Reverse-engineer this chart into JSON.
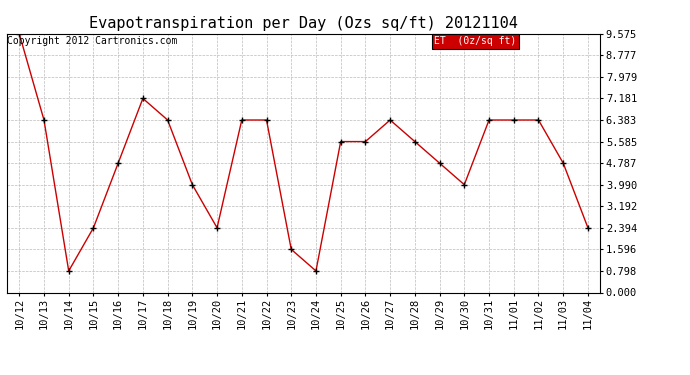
{
  "title": "Evapotranspiration per Day (Ozs sq/ft) 20121104",
  "copyright": "Copyright 2012 Cartronics.com",
  "legend_label": "ET  (0z/sq ft)",
  "x_labels": [
    "10/12",
    "10/13",
    "10/14",
    "10/15",
    "10/16",
    "10/17",
    "10/18",
    "10/19",
    "10/20",
    "10/21",
    "10/22",
    "10/23",
    "10/24",
    "10/25",
    "10/26",
    "10/27",
    "10/28",
    "10/29",
    "10/30",
    "10/31",
    "11/01",
    "11/02",
    "11/03",
    "11/04"
  ],
  "y_values": [
    9.575,
    6.383,
    0.798,
    2.394,
    4.787,
    7.181,
    6.383,
    3.99,
    2.394,
    6.383,
    6.383,
    1.596,
    0.798,
    5.585,
    5.585,
    6.383,
    5.585,
    4.787,
    3.99,
    6.383,
    6.383,
    6.383,
    4.787,
    2.394
  ],
  "y_ticks": [
    0.0,
    0.798,
    1.596,
    2.394,
    3.192,
    3.99,
    4.787,
    5.585,
    6.383,
    7.181,
    7.979,
    8.777,
    9.575
  ],
  "ylim_max": 9.575,
  "line_color": "#cc0000",
  "marker_color": "#000000",
  "legend_bg": "#cc0000",
  "legend_text_color": "#ffffff",
  "grid_color": "#bbbbbb",
  "background_color": "#ffffff",
  "title_fontsize": 11,
  "tick_fontsize": 7.5,
  "copyright_fontsize": 7
}
